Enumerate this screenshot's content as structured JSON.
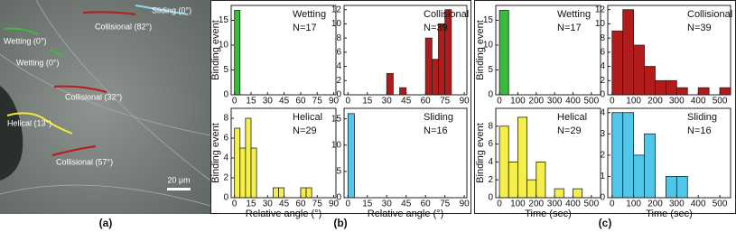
{
  "image": {
    "labels": [
      "Sliding (0°)",
      "Wetting (0°)",
      "Wetting (0°)",
      "Collisional (82°)",
      "Collisional (32°)",
      "Helical (13°)",
      "Collisional (57°)"
    ],
    "scale_bar": "20 μm"
  },
  "panel_labels": [
    "(a)",
    "(b)",
    "(c)"
  ],
  "chart_data": [
    {
      "type": "histogram",
      "title": "Wetting",
      "annotation": "N=17",
      "ylabel": "Binding event",
      "color": "#3db93d",
      "bins": [
        0,
        5,
        10,
        15,
        20,
        25,
        30,
        35,
        40,
        45,
        50,
        55,
        60,
        65,
        70,
        75,
        80,
        85,
        90
      ],
      "counts": [
        17,
        0,
        0,
        0,
        0,
        0,
        0,
        0,
        0,
        0,
        0,
        0,
        0,
        0,
        0,
        0,
        0,
        0
      ],
      "xlim": [
        -3,
        92
      ],
      "xticks": [
        0,
        15,
        30,
        45,
        60,
        75,
        90
      ],
      "ylim": [
        0,
        18
      ],
      "yticks": [
        0,
        5,
        10,
        15
      ]
    },
    {
      "type": "histogram",
      "title": "Collisional",
      "annotation": "N=39",
      "color": "#b01c1c",
      "bins": [
        0,
        5,
        10,
        15,
        20,
        25,
        30,
        35,
        40,
        45,
        50,
        55,
        60,
        65,
        70,
        75,
        80,
        85,
        90
      ],
      "counts": [
        0,
        0,
        0,
        0,
        0,
        0,
        3,
        0,
        1,
        0,
        0,
        0,
        8,
        5,
        10,
        12,
        0,
        0
      ],
      "xlim": [
        -3,
        92
      ],
      "xticks": [
        0,
        15,
        30,
        45,
        60,
        75,
        90
      ],
      "ylim": [
        0,
        12.6
      ],
      "yticks": [
        0,
        2,
        4,
        6,
        8,
        10,
        12
      ]
    },
    {
      "type": "histogram",
      "title": "Helical",
      "annotation": "N=29",
      "xlabel": "Relative angle (°)",
      "ylabel": "Binding event",
      "color": "#f4ef4a",
      "bins": [
        0,
        5,
        10,
        15,
        20,
        25,
        30,
        35,
        40,
        45,
        50,
        55,
        60,
        65,
        70,
        75,
        80,
        85,
        90
      ],
      "counts": [
        7,
        5,
        8,
        5,
        0,
        0,
        0,
        1,
        1,
        0,
        0,
        0,
        1,
        1,
        0,
        0,
        0,
        0
      ],
      "xlim": [
        -3,
        92
      ],
      "xticks": [
        0,
        15,
        30,
        45,
        60,
        75,
        90
      ],
      "ylim": [
        0,
        9
      ],
      "yticks": [
        0,
        2,
        4,
        6,
        8
      ]
    },
    {
      "type": "histogram",
      "title": "Sliding",
      "annotation": "N=16",
      "xlabel": "Relative angle (°)",
      "color": "#52c6e8",
      "bins": [
        0,
        5,
        10,
        15,
        20,
        25,
        30,
        35,
        40,
        45,
        50,
        55,
        60,
        65,
        70,
        75,
        80,
        85,
        90
      ],
      "counts": [
        16,
        0,
        0,
        0,
        0,
        0,
        0,
        0,
        0,
        0,
        0,
        0,
        0,
        0,
        0,
        0,
        0,
        0
      ],
      "xlim": [
        -3,
        92
      ],
      "xticks": [
        0,
        15,
        30,
        45,
        60,
        75,
        90
      ],
      "ylim": [
        0,
        17
      ],
      "yticks": [
        0,
        5,
        10,
        15
      ]
    },
    {
      "type": "histogram",
      "title": "Wetting",
      "annotation": "N=17",
      "ylabel": "Binding event",
      "color": "#3db93d",
      "bins": [
        0,
        50,
        100,
        150,
        200,
        250,
        300,
        350,
        400,
        450,
        500,
        550
      ],
      "counts": [
        17,
        0,
        0,
        0,
        0,
        0,
        0,
        0,
        0,
        0,
        0
      ],
      "xlim": [
        -20,
        550
      ],
      "xticks": [
        0,
        100,
        200,
        300,
        400,
        500
      ],
      "ylim": [
        0,
        18
      ],
      "yticks": [
        0,
        5,
        10,
        15
      ]
    },
    {
      "type": "histogram",
      "title": "Collisional",
      "annotation": "N=39",
      "color": "#b01c1c",
      "bins": [
        0,
        50,
        100,
        150,
        200,
        250,
        300,
        350,
        400,
        450,
        500,
        550
      ],
      "counts": [
        9,
        12,
        7,
        4,
        2,
        2,
        1,
        0,
        1,
        0,
        1
      ],
      "xlim": [
        -20,
        550
      ],
      "xticks": [
        0,
        100,
        200,
        300,
        400,
        500
      ],
      "ylim": [
        0,
        12.6
      ],
      "yticks": [
        0,
        2,
        4,
        6,
        8,
        10,
        12
      ]
    },
    {
      "type": "histogram",
      "title": "Helical",
      "annotation": "N=29",
      "xlabel": "Time (sec)",
      "ylabel": "Binding event",
      "color": "#f4ef4a",
      "bins": [
        0,
        50,
        100,
        150,
        200,
        250,
        300,
        350,
        400,
        450,
        500,
        550
      ],
      "counts": [
        8,
        4,
        9,
        2,
        4,
        0,
        1,
        0,
        1,
        0,
        0
      ],
      "xlim": [
        -20,
        550
      ],
      "xticks": [
        0,
        100,
        200,
        300,
        400,
        500
      ],
      "ylim": [
        0,
        10
      ],
      "yticks": [
        0,
        2,
        4,
        6,
        8
      ]
    },
    {
      "type": "histogram",
      "title": "Sliding",
      "annotation": "N=16",
      "xlabel": "Time (sec)",
      "color": "#52c6e8",
      "bins": [
        0,
        50,
        100,
        150,
        200,
        250,
        300,
        350,
        400,
        450,
        500,
        550
      ],
      "counts": [
        4,
        4,
        2,
        3,
        0,
        1,
        1,
        0,
        0,
        0,
        0
      ],
      "xlim": [
        -20,
        550
      ],
      "xticks": [
        0,
        100,
        200,
        300,
        400,
        500
      ],
      "ylim": [
        0,
        4.2
      ],
      "yticks": [
        0,
        1,
        2,
        3,
        4
      ]
    }
  ]
}
